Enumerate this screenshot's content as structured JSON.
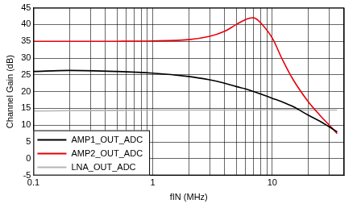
{
  "chart_data": {
    "type": "line",
    "x_label": "fIN (MHz)",
    "y_label": "Channel Gain (dB)",
    "x": [
      0.1,
      0.2,
      0.5,
      1,
      2,
      3,
      4,
      5,
      6,
      7,
      8,
      10,
      12,
      15,
      20,
      25,
      30,
      35
    ],
    "series": [
      {
        "name": "AMP1_OUT_ADC",
        "color": "#000000",
        "values": [
          26,
          26.3,
          26,
          25.5,
          24.5,
          23.5,
          22.5,
          21.5,
          20.8,
          20,
          19.3,
          18,
          17,
          15.5,
          13,
          11.2,
          9.5,
          8
        ]
      },
      {
        "name": "AMP2_OUT_ADC",
        "color": "#e8000b",
        "values": [
          35,
          35,
          35,
          35.1,
          35.5,
          36.5,
          38,
          40,
          41.5,
          42,
          40.5,
          36,
          30,
          23.5,
          17,
          13,
          10,
          7.5
        ]
      },
      {
        "name": "LNA_OUT_ADC",
        "color": "#b4b4b4",
        "values": [
          14.2,
          14.3,
          14.4,
          14.5,
          14.5,
          14.5,
          14.5,
          14.5,
          14.5,
          14.5,
          14.6,
          14.6,
          14.6,
          14.6,
          14.5,
          14.5,
          14.5,
          14.5
        ]
      }
    ],
    "log": "x",
    "xlim": [
      0.1,
      40
    ],
    "xticks": [
      0.1,
      1,
      10
    ],
    "ylim": [
      -5,
      45
    ],
    "yticks": [
      -5,
      0,
      5,
      10,
      15,
      20,
      25,
      30,
      35,
      40,
      45
    ],
    "grid": true,
    "legend": "lower left"
  }
}
